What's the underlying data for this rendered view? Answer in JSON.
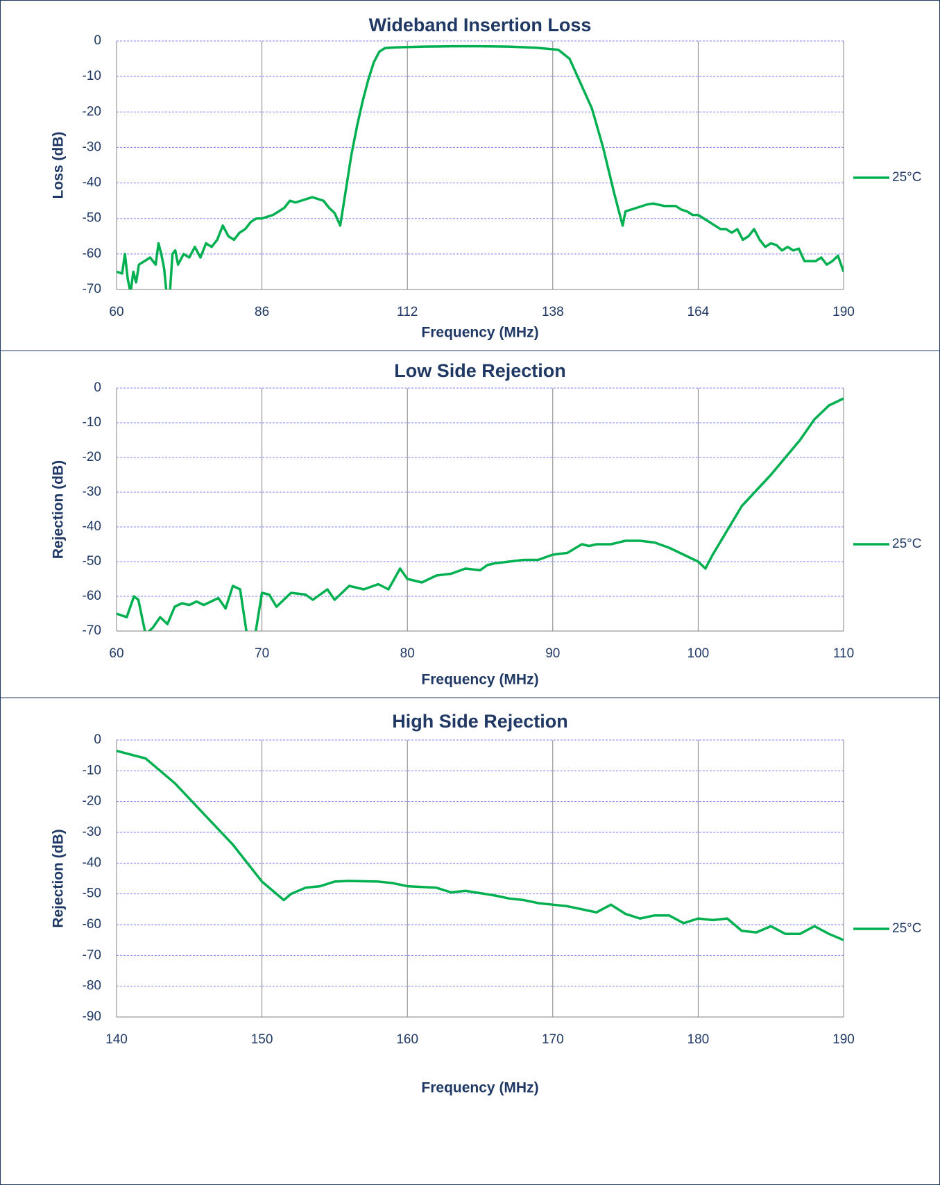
{
  "chart_data": [
    {
      "type": "line",
      "title": "Wideband Insertion Loss",
      "xlabel": "Frequency (MHz)",
      "ylabel": "Loss (dB)",
      "x": [
        60,
        61,
        61.5,
        62,
        62.5,
        63,
        63.5,
        64,
        65,
        66,
        67,
        67.5,
        68,
        68.5,
        69,
        69.5,
        70,
        70.5,
        71,
        72,
        73,
        74,
        75,
        76,
        77,
        78,
        79,
        80,
        81,
        82,
        83,
        84,
        85,
        86,
        88,
        89,
        90,
        91,
        92,
        93,
        95,
        97,
        98,
        99,
        100,
        101,
        102,
        103,
        104,
        105,
        106,
        107,
        108,
        110,
        115,
        120,
        125,
        130,
        135,
        139,
        141,
        143,
        145,
        147,
        149,
        150.5,
        151,
        153,
        155,
        156,
        158,
        160,
        161,
        162,
        163,
        164,
        165,
        166,
        167,
        168,
        169,
        170,
        171,
        172,
        173,
        174,
        175,
        176,
        177,
        178,
        179,
        180,
        181,
        182,
        183,
        185,
        186,
        187,
        188,
        189,
        190
      ],
      "series": [
        {
          "name": "25°C",
          "color": "#00b050",
          "values": [
            -65,
            -65.5,
            -60,
            -67,
            -71,
            -65,
            -68,
            -63,
            -62,
            -61,
            -63,
            -57,
            -60,
            -64,
            -72,
            -72,
            -60,
            -59,
            -63,
            -60,
            -61,
            -58,
            -61,
            -57,
            -58,
            -56,
            -52,
            -55,
            -56,
            -54,
            -53,
            -51,
            -50,
            -50,
            -49,
            -48,
            -47,
            -45,
            -45.5,
            -45,
            -44,
            -45,
            -47,
            -48.5,
            -52,
            -42,
            -32,
            -24,
            -17,
            -11,
            -6,
            -3,
            -2,
            -1.8,
            -1.6,
            -1.5,
            -1.5,
            -1.6,
            -1.9,
            -2.5,
            -5,
            -12,
            -19,
            -30,
            -43,
            -52,
            -48,
            -47,
            -46,
            -45.8,
            -46.5,
            -46.5,
            -47.5,
            -48,
            -49,
            -49,
            -50,
            -51,
            -52,
            -53,
            -53,
            -54,
            -53,
            -56,
            -55,
            -53,
            -56,
            -58,
            -57,
            -57.5,
            -59,
            -58,
            -59,
            -58.5,
            -62,
            -62,
            -61,
            -63,
            -62,
            -60.5,
            -65
          ]
        }
      ],
      "xlim": [
        60,
        190
      ],
      "xticks": [
        60,
        86,
        112,
        138,
        164,
        190
      ],
      "ylim": [
        -70,
        0
      ],
      "yticks": [
        0,
        -10,
        -20,
        -30,
        -40,
        -50,
        -60,
        -70
      ],
      "grid": true
    },
    {
      "type": "line",
      "title": "Low Side Rejection",
      "xlabel": "Frequency (MHz)",
      "ylabel": "Rejection (dB)",
      "x": [
        60,
        60.7,
        61.2,
        61.5,
        62,
        62.5,
        63,
        63.5,
        64,
        64.5,
        65,
        65.5,
        66,
        67,
        67.5,
        68,
        68.5,
        69,
        69.5,
        70,
        70.5,
        71,
        72,
        73,
        73.5,
        74.5,
        75,
        76,
        77,
        78,
        78.7,
        79.5,
        80,
        81,
        82,
        83,
        84,
        85,
        85.5,
        86,
        87,
        88,
        89,
        90,
        91,
        92,
        92.5,
        93,
        94,
        95,
        96,
        97,
        98,
        99,
        100,
        100.5,
        101,
        102,
        103,
        105,
        107,
        108,
        109,
        110
      ],
      "series": [
        {
          "name": "25°C",
          "color": "#00b050",
          "values": [
            -65,
            -66,
            -60,
            -61,
            -71,
            -69,
            -66,
            -68,
            -63,
            -62,
            -62.5,
            -61.5,
            -62.5,
            -60.5,
            -63.5,
            -57,
            -58,
            -72,
            -72,
            -59,
            -59.5,
            -63,
            -59,
            -59.5,
            -61,
            -58,
            -61,
            -57,
            -58,
            -56.5,
            -58,
            -52,
            -55,
            -56,
            -54,
            -53.5,
            -52,
            -52.5,
            -51,
            -50.5,
            -50,
            -49.5,
            -49.5,
            -48,
            -47.5,
            -45,
            -45.5,
            -45,
            -45,
            -44,
            -44,
            -44.5,
            -46,
            -48,
            -50,
            -52,
            -48,
            -41,
            -34,
            -25,
            -15,
            -9,
            -5,
            -3
          ]
        }
      ],
      "xlim": [
        60,
        110
      ],
      "xticks": [
        60,
        70,
        80,
        90,
        100,
        110
      ],
      "ylim": [
        -70,
        0
      ],
      "yticks": [
        0,
        -10,
        -20,
        -30,
        -40,
        -50,
        -60,
        -70
      ],
      "grid": true
    },
    {
      "type": "line",
      "title": "High Side Rejection",
      "xlabel": "Frequency (MHz)",
      "ylabel": "Rejection (dB)",
      "x": [
        140,
        142,
        144,
        146,
        148,
        150,
        151.5,
        152,
        153,
        154,
        155,
        156,
        158,
        159,
        160,
        162,
        163,
        164,
        166,
        167,
        168,
        169,
        170,
        171,
        172,
        173,
        174,
        175,
        176,
        177,
        178,
        179,
        180,
        181,
        182,
        183,
        184,
        185,
        186,
        187,
        188,
        189,
        190
      ],
      "series": [
        {
          "name": "25°C",
          "color": "#00b050",
          "values": [
            -3.5,
            -6,
            -14,
            -24,
            -34,
            -46,
            -52,
            -50,
            -48,
            -47.5,
            -46,
            -45.8,
            -46,
            -46.5,
            -47.5,
            -48,
            -49.5,
            -49,
            -50.5,
            -51.5,
            -52,
            -53,
            -53.5,
            -54,
            -55,
            -56,
            -53.5,
            -56.5,
            -58,
            -57,
            -57,
            -59.5,
            -58,
            -58.5,
            -58,
            -62,
            -62.5,
            -60.5,
            -63,
            -63,
            -60.5,
            -63,
            -65
          ]
        }
      ],
      "xlim": [
        140,
        190
      ],
      "xticks": [
        140,
        150,
        160,
        170,
        180,
        190
      ],
      "ylim": [
        -90,
        0
      ],
      "yticks": [
        0,
        -10,
        -20,
        -30,
        -40,
        -50,
        -60,
        -70,
        -80,
        -90
      ],
      "grid": true
    }
  ]
}
